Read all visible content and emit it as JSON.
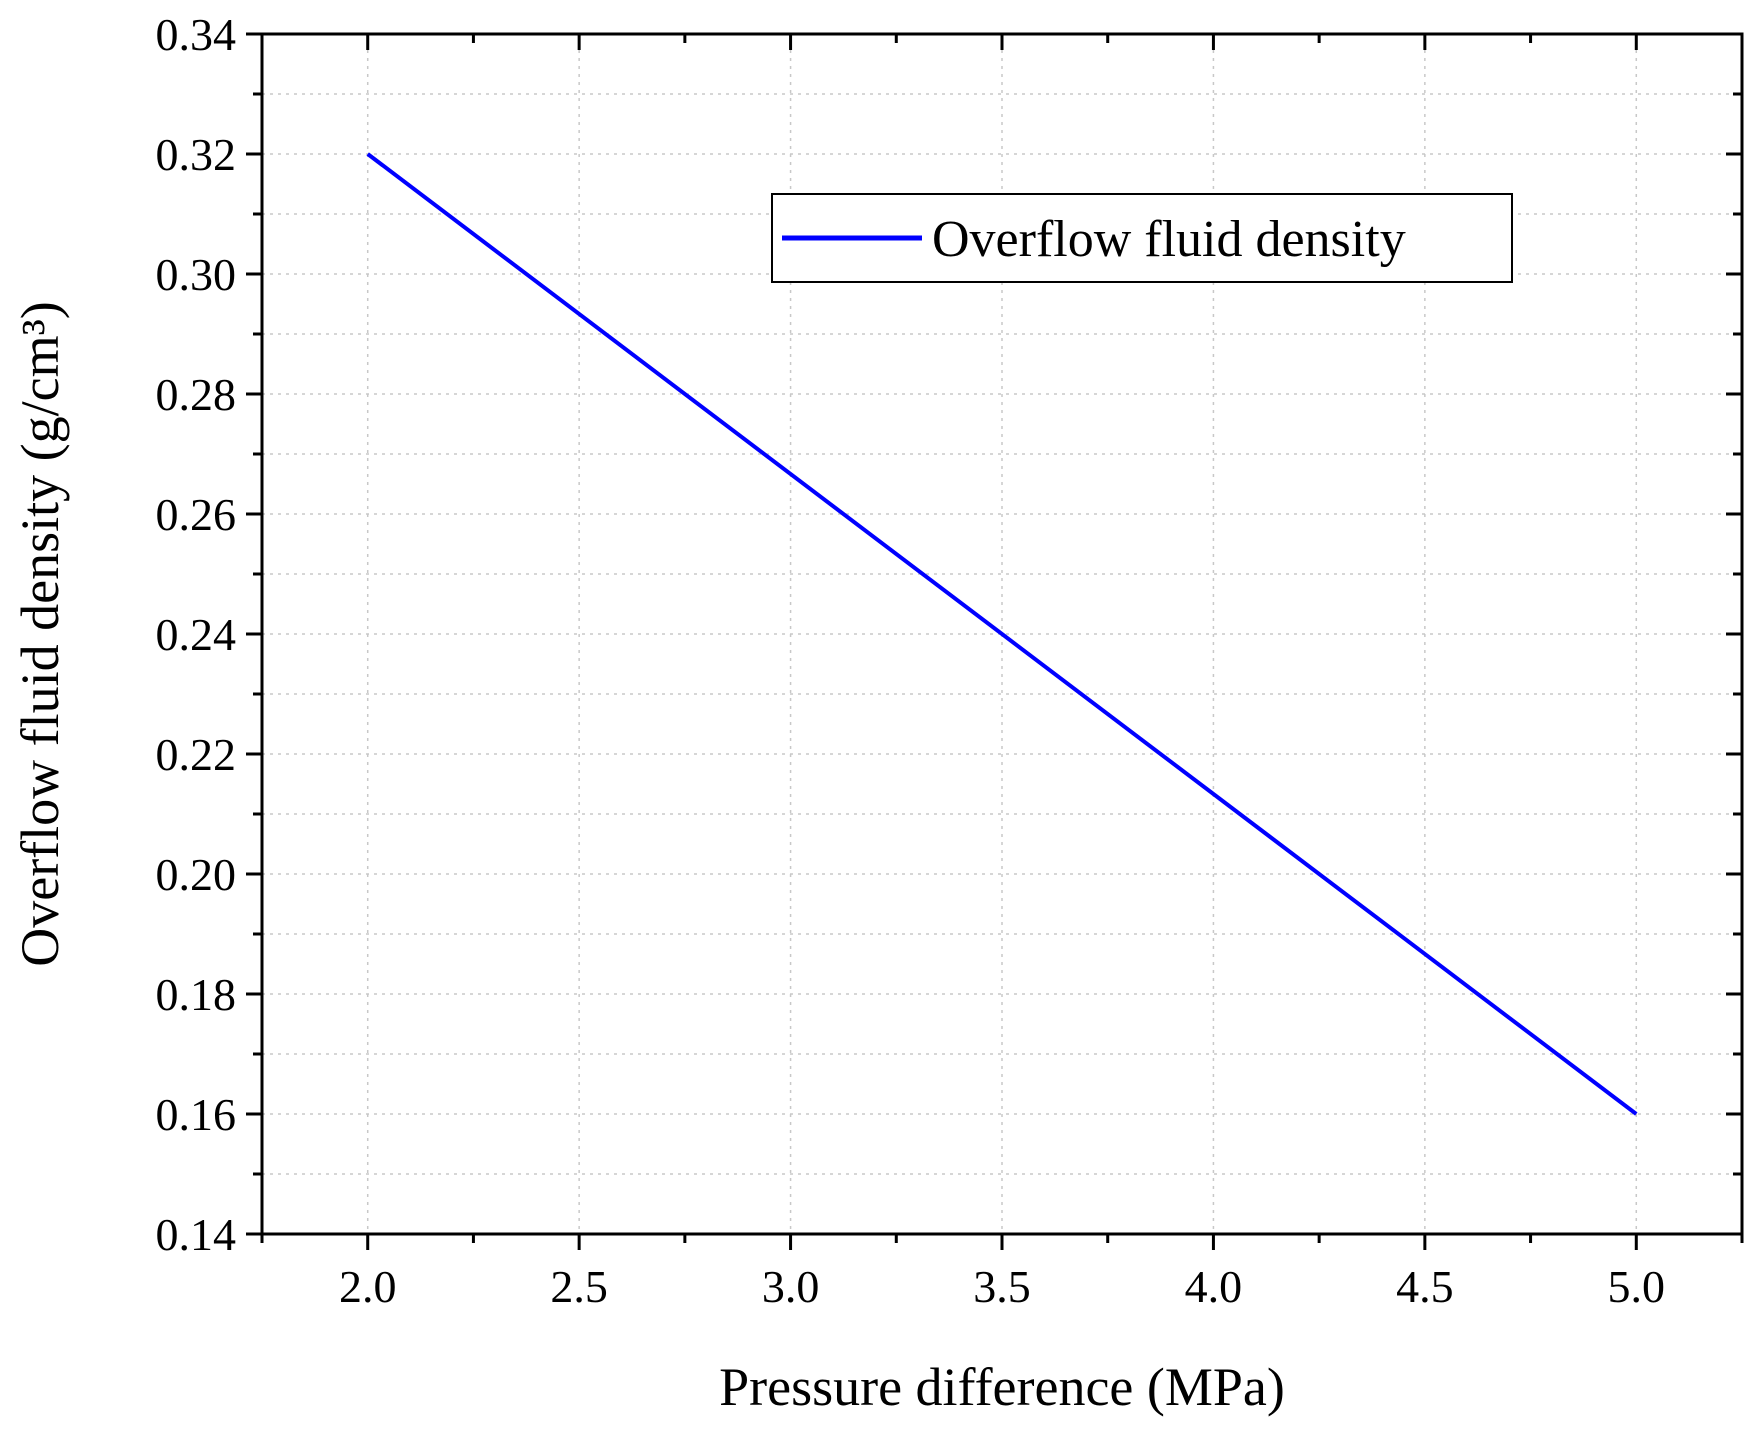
{
  "chart_data": {
    "type": "line",
    "xlabel": "Pressure difference (MPa)",
    "ylabel": "Overflow fluid density (g/cm³)",
    "xlim": [
      1.75,
      5.25
    ],
    "ylim": [
      0.14,
      0.34
    ],
    "x_ticks": [
      "2.0",
      "2.5",
      "3.0",
      "3.5",
      "4.0",
      "4.5",
      "5.0"
    ],
    "y_ticks": [
      "0.14",
      "0.16",
      "0.18",
      "0.20",
      "0.22",
      "0.24",
      "0.26",
      "0.28",
      "0.30",
      "0.32",
      "0.34"
    ],
    "grid": true,
    "legend_position": "top-right",
    "series": [
      {
        "name": "Overflow fluid density",
        "color": "#0000ff",
        "x": [
          2.0,
          5.0
        ],
        "y": [
          0.32,
          0.16
        ]
      }
    ]
  }
}
